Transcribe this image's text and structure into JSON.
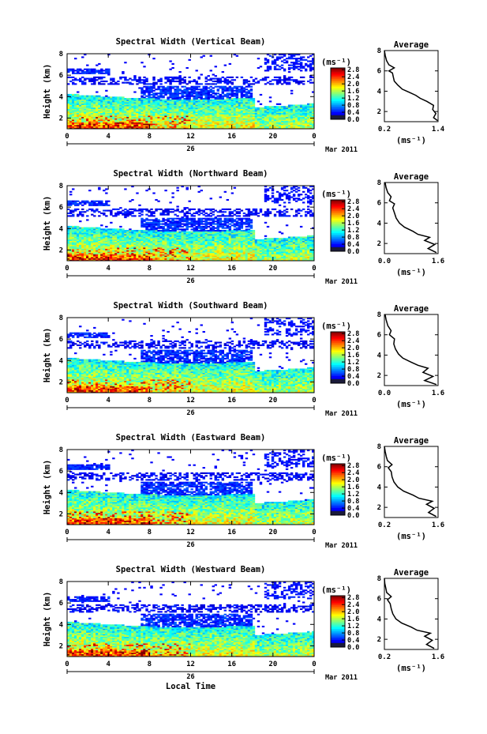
{
  "chart_data": [
    {
      "type": "heatmap",
      "title": "Spectral Width (Vertical Beam)",
      "ylabel": "Height (km)",
      "x_ticks": [
        "0",
        "4",
        "8",
        "12",
        "16",
        "20",
        "0"
      ],
      "y_ticks": [
        "2",
        "4",
        "6",
        "8"
      ],
      "xlim": [
        0,
        24
      ],
      "ylim": [
        1,
        8
      ],
      "date_day": "26",
      "date_month": "Mar 2011",
      "colorbar": {
        "unit": "(ms⁻¹)",
        "ticks": [
          "0.0",
          "0.4",
          "0.8",
          "1.2",
          "1.6",
          "2.0",
          "2.4",
          "2.8"
        ],
        "range": [
          0,
          2.9
        ]
      },
      "average": {
        "title": "Average",
        "xlabel": "(ms⁻¹)",
        "x_ticks": [
          "0.2",
          "1.4"
        ],
        "xlim": [
          0.2,
          1.4
        ],
        "y_ticks": [
          "2",
          "4",
          "6",
          "8"
        ],
        "ylim": [
          1,
          8
        ],
        "profile": [
          [
            1.39,
            1.1
          ],
          [
            1.3,
            1.4
          ],
          [
            1.35,
            1.8
          ],
          [
            1.28,
            2.2
          ],
          [
            1.3,
            2.6
          ],
          [
            1.15,
            3.0
          ],
          [
            1.0,
            3.3
          ],
          [
            0.9,
            3.6
          ],
          [
            0.75,
            3.9
          ],
          [
            0.6,
            4.2
          ],
          [
            0.5,
            4.6
          ],
          [
            0.42,
            5.0
          ],
          [
            0.4,
            5.4
          ],
          [
            0.38,
            5.8
          ],
          [
            0.3,
            6.0
          ],
          [
            0.42,
            6.3
          ],
          [
            0.3,
            6.6
          ],
          [
            0.25,
            7.0
          ],
          [
            0.22,
            7.5
          ],
          [
            0.2,
            8.0
          ]
        ]
      }
    },
    {
      "type": "heatmap",
      "title": "Spectral Width (Northward Beam)",
      "ylabel": "Height (km)",
      "x_ticks": [
        "0",
        "4",
        "8",
        "12",
        "16",
        "20",
        "0"
      ],
      "y_ticks": [
        "2",
        "4",
        "6",
        "8"
      ],
      "xlim": [
        0,
        24
      ],
      "ylim": [
        1,
        8
      ],
      "date_day": "26",
      "date_month": "Mar 2011",
      "colorbar": {
        "unit": "(ms⁻¹)",
        "ticks": [
          "0.0",
          "0.4",
          "0.8",
          "1.2",
          "1.6",
          "2.0",
          "2.4",
          "2.8"
        ],
        "range": [
          0,
          2.9
        ]
      },
      "average": {
        "title": "Average",
        "xlabel": "(ms⁻¹)",
        "x_ticks": [
          "0.0",
          "1.6"
        ],
        "xlim": [
          0.0,
          1.6
        ],
        "y_ticks": [
          "2",
          "4",
          "6",
          "8"
        ],
        "ylim": [
          1,
          8
        ],
        "profile": [
          [
            1.55,
            1.1
          ],
          [
            1.3,
            1.5
          ],
          [
            1.5,
            1.9
          ],
          [
            1.2,
            2.3
          ],
          [
            1.35,
            2.6
          ],
          [
            1.0,
            2.9
          ],
          [
            0.85,
            3.2
          ],
          [
            0.6,
            3.6
          ],
          [
            0.45,
            4.0
          ],
          [
            0.35,
            4.5
          ],
          [
            0.3,
            5.0
          ],
          [
            0.25,
            5.5
          ],
          [
            0.3,
            5.9
          ],
          [
            0.15,
            6.2
          ],
          [
            0.2,
            6.6
          ],
          [
            0.1,
            7.0
          ],
          [
            0.05,
            7.5
          ],
          [
            0.02,
            8.0
          ]
        ]
      }
    },
    {
      "type": "heatmap",
      "title": "Spectral Width (Southward Beam)",
      "ylabel": "Height (km)",
      "x_ticks": [
        "0",
        "4",
        "8",
        "12",
        "16",
        "20",
        "0"
      ],
      "y_ticks": [
        "2",
        "4",
        "6",
        "8"
      ],
      "xlim": [
        0,
        24
      ],
      "ylim": [
        1,
        8
      ],
      "date_day": "26",
      "date_month": "Mar 2011",
      "colorbar": {
        "unit": "(ms⁻¹)",
        "ticks": [
          "0.0",
          "0.4",
          "0.8",
          "1.2",
          "1.6",
          "2.0",
          "2.4",
          "2.8"
        ],
        "range": [
          0,
          2.9
        ]
      },
      "average": {
        "title": "Average",
        "xlabel": "(ms⁻¹)",
        "x_ticks": [
          "0.0",
          "1.6"
        ],
        "xlim": [
          0.0,
          1.6
        ],
        "y_ticks": [
          "2",
          "4",
          "6",
          "8"
        ],
        "ylim": [
          1,
          8
        ],
        "profile": [
          [
            1.55,
            1.1
          ],
          [
            1.2,
            1.5
          ],
          [
            1.45,
            1.9
          ],
          [
            1.15,
            2.3
          ],
          [
            1.3,
            2.7
          ],
          [
            1.0,
            3.0
          ],
          [
            0.8,
            3.3
          ],
          [
            0.55,
            3.7
          ],
          [
            0.42,
            4.1
          ],
          [
            0.33,
            4.6
          ],
          [
            0.28,
            5.1
          ],
          [
            0.3,
            5.6
          ],
          [
            0.15,
            6.0
          ],
          [
            0.2,
            6.4
          ],
          [
            0.1,
            6.9
          ],
          [
            0.05,
            7.5
          ],
          [
            0.02,
            8.0
          ]
        ]
      }
    },
    {
      "type": "heatmap",
      "title": "Spectral Width (Eastward Beam)",
      "ylabel": "Height (km)",
      "x_ticks": [
        "0",
        "4",
        "8",
        "12",
        "16",
        "20",
        "0"
      ],
      "y_ticks": [
        "2",
        "4",
        "6",
        "8"
      ],
      "xlim": [
        0,
        24
      ],
      "ylim": [
        1,
        8
      ],
      "date_day": "26",
      "date_month": "Mar 2011",
      "colorbar": {
        "unit": "(ms⁻¹)",
        "ticks": [
          "0.0",
          "0.4",
          "0.8",
          "1.2",
          "1.6",
          "2.0",
          "2.4",
          "2.8"
        ],
        "range": [
          0,
          2.9
        ]
      },
      "average": {
        "title": "Average",
        "xlabel": "(ms⁻¹)",
        "x_ticks": [
          "0.2",
          "1.6"
        ],
        "xlim": [
          0.2,
          1.6
        ],
        "y_ticks": [
          "2",
          "4",
          "6",
          "8"
        ],
        "ylim": [
          1,
          8
        ],
        "profile": [
          [
            1.55,
            1.1
          ],
          [
            1.35,
            1.5
          ],
          [
            1.5,
            1.9
          ],
          [
            1.3,
            2.3
          ],
          [
            1.45,
            2.6
          ],
          [
            1.1,
            2.9
          ],
          [
            0.95,
            3.2
          ],
          [
            0.7,
            3.6
          ],
          [
            0.55,
            4.0
          ],
          [
            0.45,
            4.5
          ],
          [
            0.4,
            5.0
          ],
          [
            0.38,
            5.5
          ],
          [
            0.3,
            5.9
          ],
          [
            0.4,
            6.2
          ],
          [
            0.28,
            6.6
          ],
          [
            0.25,
            7.0
          ],
          [
            0.22,
            7.5
          ],
          [
            0.2,
            8.0
          ]
        ]
      }
    },
    {
      "type": "heatmap",
      "title": "Spectral Width (Westward Beam)",
      "ylabel": "Height (km)",
      "x_ticks": [
        "0",
        "4",
        "8",
        "12",
        "16",
        "20",
        "0"
      ],
      "y_ticks": [
        "2",
        "4",
        "6",
        "8"
      ],
      "xlim": [
        0,
        24
      ],
      "ylim": [
        1,
        8
      ],
      "date_day": "26",
      "date_month": "Mar 2011",
      "xlabel": "Local Time",
      "colorbar": {
        "unit": "(ms⁻¹)",
        "ticks": [
          "0.0",
          "0.4",
          "0.8",
          "1.2",
          "1.6",
          "2.0",
          "2.4",
          "2.8"
        ],
        "range": [
          0,
          2.9
        ]
      },
      "average": {
        "title": "Average",
        "xlabel": "(ms⁻¹)",
        "x_ticks": [
          "0.2",
          "1.6"
        ],
        "xlim": [
          0.2,
          1.6
        ],
        "y_ticks": [
          "2",
          "4",
          "6",
          "8"
        ],
        "ylim": [
          1,
          8
        ],
        "profile": [
          [
            1.5,
            1.1
          ],
          [
            1.3,
            1.5
          ],
          [
            1.45,
            1.9
          ],
          [
            1.25,
            2.3
          ],
          [
            1.4,
            2.6
          ],
          [
            1.05,
            2.9
          ],
          [
            0.9,
            3.2
          ],
          [
            0.65,
            3.6
          ],
          [
            0.5,
            4.0
          ],
          [
            0.42,
            4.5
          ],
          [
            0.38,
            5.0
          ],
          [
            0.35,
            5.5
          ],
          [
            0.28,
            5.9
          ],
          [
            0.38,
            6.2
          ],
          [
            0.26,
            6.6
          ],
          [
            0.24,
            7.0
          ],
          [
            0.21,
            7.5
          ],
          [
            0.2,
            8.0
          ]
        ]
      }
    }
  ]
}
